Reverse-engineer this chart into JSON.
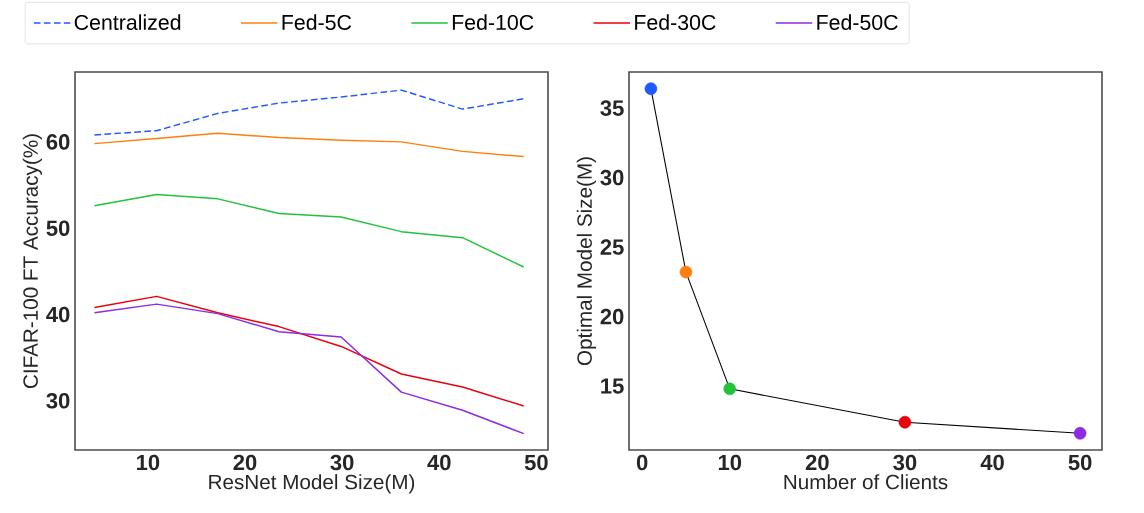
{
  "chart_data": [
    {
      "type": "line",
      "xlabel": "ResNet Model Size(M)",
      "ylabel": "CIFAR-100 FT Accuracy(%)",
      "x": [
        4.5,
        10.9,
        17.2,
        23.5,
        29.9,
        36.1,
        42.4,
        48.7
      ],
      "xlim": [
        2.5,
        51.2
      ],
      "ylim": [
        24.3,
        68.1
      ],
      "xticks": [
        10,
        20,
        30,
        40,
        50
      ],
      "yticks": [
        30,
        40,
        50,
        60
      ],
      "grid": false,
      "legend": "top",
      "marker": "none",
      "series": [
        {
          "name": "Centralized",
          "color": "#1f5aff",
          "line_style": "dashed",
          "values": [
            60.8,
            61.3,
            63.3,
            64.5,
            65.2,
            66.0,
            63.8,
            65.0
          ]
        },
        {
          "name": "Fed-5C",
          "color": "#ff7f0e",
          "line_style": "solid",
          "values": [
            59.8,
            60.4,
            61.0,
            60.5,
            60.2,
            60.0,
            58.9,
            58.3
          ]
        },
        {
          "name": "Fed-10C",
          "color": "#22c33a",
          "line_style": "solid",
          "values": [
            52.6,
            53.9,
            53.4,
            51.7,
            51.3,
            49.6,
            48.9,
            45.5
          ]
        },
        {
          "name": "Fed-30C",
          "color": "#e8000b",
          "line_style": "solid",
          "values": [
            40.8,
            42.1,
            40.2,
            38.6,
            36.3,
            33.1,
            31.6,
            29.4
          ]
        },
        {
          "name": "Fed-50C",
          "color": "#8b2be2",
          "line_style": "solid",
          "values": [
            40.2,
            41.2,
            40.1,
            38.0,
            37.4,
            31.0,
            28.9,
            26.2
          ]
        }
      ]
    },
    {
      "type": "line",
      "xlabel": "Number of Clients",
      "ylabel": "Optimal Model Size(M)",
      "x": [
        1,
        5,
        10,
        30,
        50
      ],
      "xlim": [
        -1.5,
        52.5
      ],
      "ylim": [
        10.4,
        37.6
      ],
      "xticks": [
        0,
        10,
        20,
        30,
        40,
        50
      ],
      "yticks": [
        15,
        20,
        25,
        30,
        35
      ],
      "grid": false,
      "legend": false,
      "marker": "circle",
      "series": [
        {
          "color": "#000000",
          "colors": [
            "#1f5aff",
            "#ff7f0e",
            "#22c33a",
            "#e8000b",
            "#8b2be2"
          ],
          "line_style": "solid",
          "values": [
            36.4,
            23.2,
            14.8,
            12.4,
            11.6
          ]
        }
      ]
    }
  ]
}
